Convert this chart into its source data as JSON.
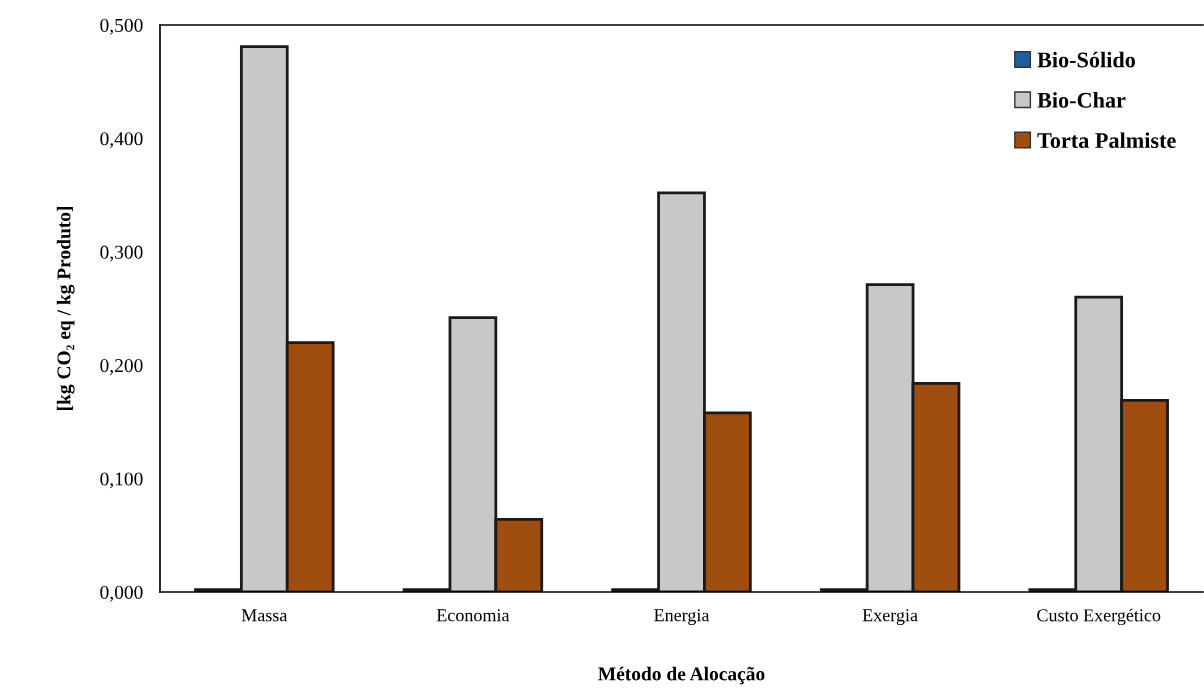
{
  "chart_data": {
    "type": "bar",
    "xlabel": "Método de Alocação",
    "ylabel": "[kg CO₂ eq / kg Produto]",
    "categories": [
      "Massa",
      "Economia",
      "Energia",
      "Exergia",
      "Custo Exergético"
    ],
    "series": [
      {
        "name": "Bio-Sólido",
        "color": "#1f5fa0",
        "values": [
          0.002,
          0.002,
          0.002,
          0.002,
          0.002
        ]
      },
      {
        "name": "Bio-Char",
        "color": "#c8c8c8",
        "values": [
          0.481,
          0.242,
          0.352,
          0.271,
          0.26
        ]
      },
      {
        "name": "Torta Palmiste",
        "color": "#a04e10",
        "values": [
          0.22,
          0.064,
          0.158,
          0.184,
          0.169
        ]
      }
    ],
    "ylim": [
      0,
      0.5
    ],
    "yticks": [
      {
        "value": 0,
        "label": "0,000"
      },
      {
        "value": 0.1,
        "label": "0,100"
      },
      {
        "value": 0.2,
        "label": "0,200"
      },
      {
        "value": 0.3,
        "label": "0,300"
      },
      {
        "value": 0.4,
        "label": "0,400"
      },
      {
        "value": 0.5,
        "label": "0,500"
      }
    ],
    "grid": false,
    "legend": "top right"
  }
}
